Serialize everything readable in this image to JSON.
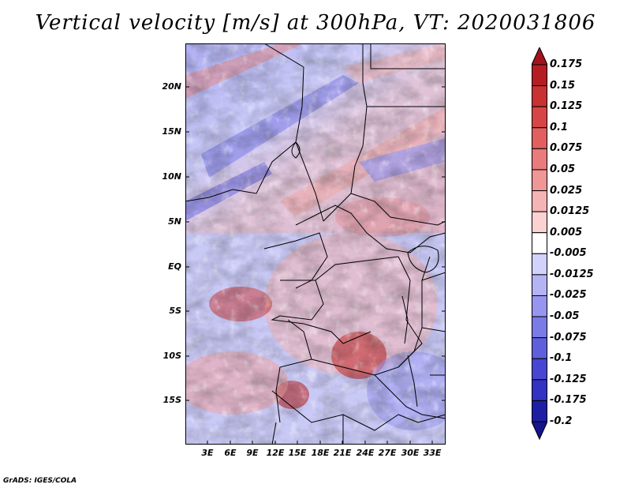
{
  "title": "Vertical velocity [m/s] at 300hPa, VT: 2020031806",
  "map": {
    "variable": "Vertical velocity",
    "units": "m/s",
    "level": "300hPa",
    "valid_time": "2020031806",
    "lat_ticks": [
      "20N",
      "15N",
      "10N",
      "5N",
      "EQ",
      "5S",
      "10S",
      "15S"
    ],
    "lon_ticks": [
      "3E",
      "6E",
      "9E",
      "12E",
      "15E",
      "18E",
      "21E",
      "24E",
      "27E",
      "30E",
      "33E"
    ]
  },
  "colorbar": {
    "levels": [
      "0.175",
      "0.15",
      "0.125",
      "0.1",
      "0.075",
      "0.05",
      "0.025",
      "0.0125",
      "0.005",
      "-0.005",
      "-0.0125",
      "-0.025",
      "-0.05",
      "-0.075",
      "-0.1",
      "-0.125",
      "-0.175",
      "-0.2"
    ],
    "colors": [
      "#a0141e",
      "#b41e23",
      "#c83232",
      "#d74646",
      "#e15f5f",
      "#e87b7b",
      "#f09696",
      "#f5b4b4",
      "#fad2d2",
      "#ffffff",
      "#d2d2fa",
      "#b4b4f5",
      "#9696f0",
      "#7b7be6",
      "#5f5fdc",
      "#4646d2",
      "#3232c3",
      "#1e1ea5",
      "#14148c"
    ]
  },
  "credit": "GrADS: IGES/COLA"
}
